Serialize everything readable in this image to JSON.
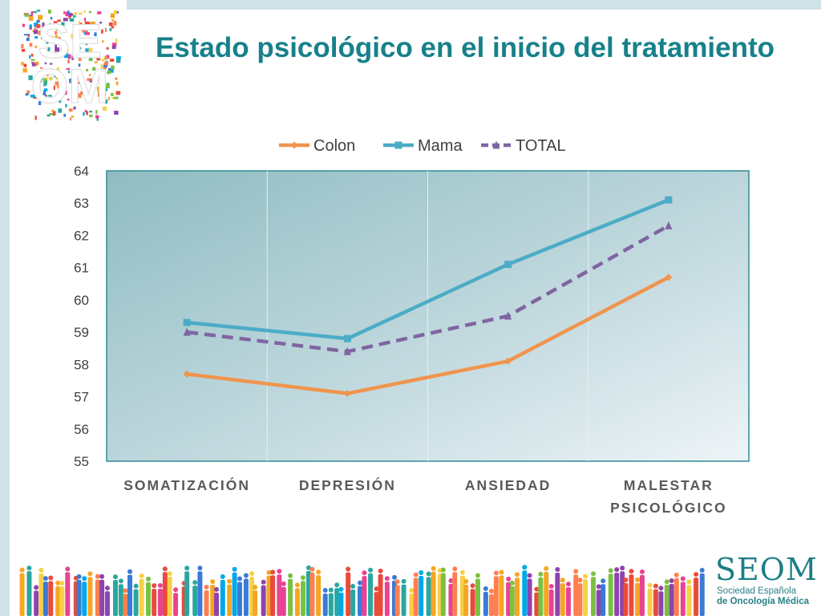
{
  "slide": {
    "title": "Estado psicológico en el inicio del tratamiento",
    "logo_top": {
      "line1": "SE",
      "line2": "OM"
    },
    "brand": {
      "name": "SEOM",
      "subtitle_1": "Sociedad Española",
      "subtitle_2": "de Oncología Médica"
    },
    "colors": {
      "title": "#17818a",
      "band": "#cfe2e6",
      "brand": "#1d7e86"
    }
  },
  "chart_data": {
    "type": "line",
    "categories": [
      [
        "SOMATIZACIÓN"
      ],
      [
        "DEPRESIÓN"
      ],
      [
        "ANSIEDAD"
      ],
      [
        "MALESTAR",
        "PSICOLÓGICO"
      ]
    ],
    "series": [
      {
        "name": "Colon",
        "values": [
          57.7,
          57.1,
          58.1,
          60.7
        ],
        "color": "#f0944d",
        "marker": "diamond",
        "dash": false
      },
      {
        "name": "Mama",
        "values": [
          59.3,
          58.8,
          61.1,
          63.1
        ],
        "color": "#4bacc6",
        "marker": "square",
        "dash": false
      },
      {
        "name": "TOTAL",
        "values": [
          59.0,
          58.4,
          59.5,
          62.3
        ],
        "color": "#8064a2",
        "marker": "triangle",
        "dash": true
      }
    ],
    "ylim": [
      55,
      64
    ],
    "yticks": [
      55,
      56,
      57,
      58,
      59,
      60,
      61,
      62,
      63,
      64
    ],
    "legend": "top",
    "grid": "vertical category separators"
  }
}
